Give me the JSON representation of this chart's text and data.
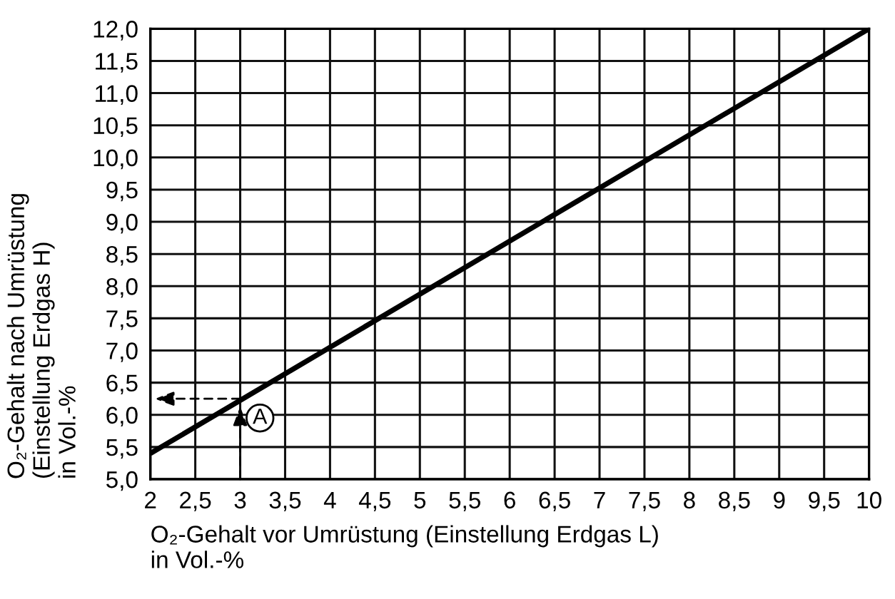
{
  "chart_data": {
    "type": "line",
    "xlabel": "O₂-Gehalt vor Umrüstung (Einstellung Erdgas L)\nin Vol.-%",
    "ylabel": "O₂-Gehalt nach Umrüstung\n(Einstellung Erdgas H)\nin Vol.-%",
    "x": [
      2,
      10
    ],
    "series": [
      {
        "color": "#000000",
        "values": [
          5.4,
          12.0
        ]
      }
    ],
    "xlim": [
      2,
      10
    ],
    "xticks": [
      2,
      {
        "value": 2.5,
        "label": "2,5"
      },
      3,
      {
        "value": 3.5,
        "label": "3,5"
      },
      4,
      {
        "value": 4.5,
        "label": "4,5"
      },
      5,
      {
        "value": 5.5,
        "label": "5,5"
      },
      6,
      {
        "value": 6.5,
        "label": "6,5"
      },
      7,
      {
        "value": 7.5,
        "label": "7,5"
      },
      8,
      {
        "value": 8.5,
        "label": "8,5"
      },
      9,
      {
        "value": 9.5,
        "label": "9,5"
      },
      10
    ],
    "ylim": [
      5.0,
      12.0
    ],
    "yticks": [
      {
        "value": 5.0,
        "label": "5,0"
      },
      {
        "value": 5.5,
        "label": "5,5"
      },
      {
        "value": 6.0,
        "label": "6,0"
      },
      {
        "value": 6.5,
        "label": "6,5"
      },
      {
        "value": 7.0,
        "label": "7,0"
      },
      {
        "value": 7.5,
        "label": "7,5"
      },
      {
        "value": 8.0,
        "label": "8,0"
      },
      {
        "value": 8.5,
        "label": "8,5"
      },
      {
        "value": 9.0,
        "label": "9,0"
      },
      {
        "value": 9.5,
        "label": "9,5"
      },
      {
        "value": 10.0,
        "label": "10,0"
      },
      {
        "value": 10.5,
        "label": "10,5"
      },
      {
        "value": 11.0,
        "label": "11,0"
      },
      {
        "value": 11.5,
        "label": "11,5"
      },
      {
        "value": 12.0,
        "label": "12,0"
      }
    ],
    "grid": true,
    "marker": "none",
    "line_style": "solid",
    "legend": false,
    "annotations": [
      {
        "text": "A",
        "x": 3,
        "y": 6.25
      }
    ]
  }
}
